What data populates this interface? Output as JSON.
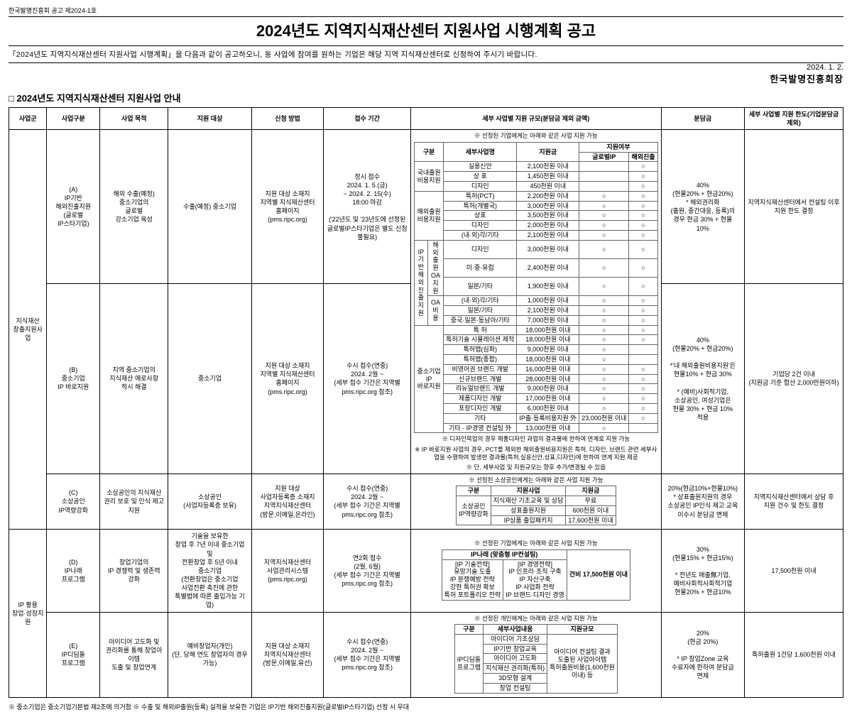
{
  "header": {
    "notice_no": "한국발명진흥회 공고 제2024-1호",
    "title": "2024년도 지역지식재산센터 지원사업 시행계획 공고",
    "intro": "「2024년도 지역지식재산센터 지원사업 시행계획」을 다음과 같이 공고하오니, 동 사업에 참여를 원하는 기업은 해당 지역 지식재산센터로 신청하여 주시기 바랍니다.",
    "date": "2024. 1. 2.",
    "signer": "한국발명진흥회장",
    "section_heading": "□ 2024년도 지역지식재산센터 지원사업 안내"
  },
  "cols": {
    "c1": "사업군",
    "c2": "사업구분",
    "c3": "사업 목적",
    "c4": "지원 대상",
    "c5": "신청 방법",
    "c6": "접수 기간",
    "c7": "세부 사업별 지원 규모(분담금 제외 금액)",
    "c8": "분담금",
    "c9": "세부 사업별 지원 한도(기업분담금 제외)"
  },
  "g1": {
    "label": "지식재산\n창출지원사업"
  },
  "g2": {
    "label": "IP 활용\n창업·성장지원"
  },
  "a": {
    "gubun": "(A)\nIP기반\n해외진출지원\n(글로벌\nIP스타기업)",
    "purpose": "해외 수출(예정)\n중소기업의\n글로벌\n강소기업 육성",
    "target": "수출(예정) 중소기업",
    "method": "지원 대상 소재지\n지역별 지식재산센터\n홈페이지\n(pms.ripc.org)",
    "period": "정시 접수\n2024. 1. 5.(금)\n~ 2024. 2. 15(수)\n18:00 마감\n\n('22년도 및 '23년도에 선정된\n글로벌IP스타기업은 별도 신청\n불필요)",
    "share": "40%\n(현물20% + 현금20%)\n* 해외권리화\n(출원, 중간대응, 등록)의\n경우 현금 30% + 현물\n10%",
    "limit": "지역지식재산센터에서 컨설팅 이후\n지원 한도 결정"
  },
  "b": {
    "gubun": "(B)\n중소기업\nIP 바로지원",
    "purpose": "지역 중소기업의\n지식재산 애로사항\n적시 해결",
    "target": "중소기업",
    "method": "지원 대상 소재지\n지역별 지식재산센터\n홈페이지\n(pms.ripc.org)",
    "period": "수시 접수(연중)\n2024. 2월 ~\n(세부 접수 기간은 지역별\npms.ripc.org 참조)",
    "share": "40%\n(현물20% + 현금20%)\n\n*'내 해외출원비용지원'은\n현물10% + 현금 30%\n\n* (예비)사회적기업,\n소상공인, 여성기업은\n현물 30% + 현금 10%\n적용",
    "limit": "기업당 2건 이내\n(지원금 기준 합산 2,000만원이하)"
  },
  "ab_nest": {
    "title": "※ 선정된 기업에게는 아래와 같은 사업 지원 가능",
    "head": {
      "h1": "구분",
      "h2": "세부사업명",
      "h3": "지원금",
      "h4": "지원여부",
      "h4a": "글로벌IP",
      "h4b": "해외진출"
    },
    "g_domestic": "국내출원\n비용지원",
    "g_overseas": "해외출원\n비용지원",
    "g_ip": "IP기반\n해외진출\n지원",
    "g_sme": "중소기업\nIP\n바로지원",
    "g_oa": "해외출원\nOA지원",
    "sub_oa": "OA\n비용",
    "sub_etc": "등록\n비용",
    "rows": [
      {
        "a": "실용신안",
        "b": "2,100천원 이내",
        "c": "",
        "d": "○"
      },
      {
        "a": "상 표",
        "b": "1,450천원 이내",
        "c": "",
        "d": "○"
      },
      {
        "a": "디자인",
        "b": "450천원 이내",
        "c": "",
        "d": "○"
      },
      {
        "a": "특허(PCT)",
        "b": "2,200천원 이내",
        "c": "○",
        "d": "○"
      },
      {
        "a": "특허(개별국)",
        "b": "3,000천원 이내",
        "c": "○",
        "d": "○"
      },
      {
        "a": "상표",
        "b": "3,500천원 이내",
        "c": "○",
        "d": "○"
      },
      {
        "a": "디자인",
        "b": "2,000천원 이내",
        "c": "○",
        "d": "○"
      },
      {
        "a": "(내·외)각/기타",
        "b": "2,100천원 이내",
        "c": "○",
        "d": "○"
      },
      {
        "a": "디자인",
        "b": "3,000천원 이내",
        "c": "○",
        "d": "○"
      },
      {
        "a": "미·중·유럽",
        "b": "2,400천원 이내",
        "c": "○",
        "d": "○"
      },
      {
        "a": "일본/기타",
        "b": "1,900천원 이내",
        "c": "○",
        "d": "○"
      },
      {
        "a": "(내·외)각/기타",
        "b": "1,000천원 이내",
        "c": "○",
        "d": "○"
      },
      {
        "a": "일본/기타",
        "b": "2,100천원 이내",
        "c": "○",
        "d": "○"
      },
      {
        "a": "중국·일본·동남아/기타",
        "b": "7,000천원 이내",
        "c": "○",
        "d": "○"
      },
      {
        "a": "특 허",
        "b": "18,000천원 이내",
        "c": "○",
        "d": "○"
      },
      {
        "a": "특허기술 시뮬레이션 제작",
        "b": "18,000천원 이내",
        "c": "○",
        "d": "○"
      },
      {
        "a": "특허맵(심화)",
        "b": "9,000천원 이내",
        "c": "○",
        "d": ""
      },
      {
        "a": "특허맵(종합)",
        "b": "18,000천원 이내",
        "c": "○",
        "d": ""
      },
      {
        "a": "비영어권 브랜드 개발",
        "b": "16,000천원 이내",
        "c": "○",
        "d": "○"
      },
      {
        "a": "신규브랜드 개발",
        "b": "28,000천원 이내",
        "c": "○",
        "d": "○"
      },
      {
        "a": "리뉴얼브랜드 개발",
        "b": "9,000천원 이내",
        "c": "○",
        "d": "○"
      },
      {
        "a": "제품디자인 개발",
        "b": "17,000천원 이내",
        "c": "○",
        "d": "○"
      },
      {
        "a": "포장디자인 개발",
        "b": "6,000천원 이내",
        "c": "○",
        "d": "○"
      },
      {
        "a": "기타",
        "b": "IP출·등록비용지원 外",
        "c": "23,000천원 이내",
        "d": "○"
      },
      {
        "a": "기타 - IP경영 컨설팅 外",
        "b": "13,000천원 이내",
        "c": "○",
        "d": ""
      }
    ],
    "notes": [
      "※ 디자인목업의 경우 제품디자인 과업의 결과물에 한하여 연계로 지원 가능",
      "※ IP 바로지원 사업의 경우, PCT를 제외한 해외출원비용지원은 특허, 디자인, 브랜드 관련 세부사업을 수행하여 발생한 결과물(특허,실용신안,상표,디자인)에 한하여 연계 지원 제공",
      "※ 단, 세부사업 및 지원규모는 향후 추가/변경될 수 있음"
    ]
  },
  "c": {
    "gubun": "(C)\n소상공인\nIP역량강화",
    "purpose": "소상공인의 지식재산\n권리 보호 및 인식 제고\n지원",
    "target": "소상공인\n(사업자등록증 보유)",
    "method": "지원 대상\n사업자등록증 소재지\n지역지식재산센터\n(방문,이메일,온라인)",
    "period": "수시 접수(연중)\n2024. 2월 ~\n(세부 접수 기간은 지역별\npms.ripc.org 참조)",
    "share": "20%(현금10%+현물10%)\n* 상표출원지원의 경우\n소상공인 IP인식 제고 교육\n이수시 분담금 면제",
    "limit": "지역지식재산센터에서 상담 후\n지원 건수 및 한도 결정",
    "nest_title": "※ 선정된 소상공인에게는 아래와 같은 사업 지원 가능",
    "t": {
      "h1": "구분",
      "h2": "지원사업",
      "h3": "지원금",
      "g": "소상공인\nIP역량강화",
      "r1a": "지식재산 기초교육 및 상담",
      "r1b": "무료",
      "r2a": "상표출원지원",
      "r2b": "600천원 이내",
      "r3a": "IP상품 출입패키지",
      "r3b": "17,600천원 이내"
    }
  },
  "d": {
    "gubun": "(D)\nIP나래\n프로그램",
    "purpose": "창업기업의\nIP 경쟁력 및 생존력\n강화",
    "target": "기술을 보유한\n창업 후 7년 이내 중소기업 및\n전환창업 후 5년 이내\n중소기업\n(전환창업은 중소기업\n사업전환 촉진에 관한\n특별법에 따른 출입가능 기업)",
    "method": "지역지식재산센터\n사업관리시스템\n(pms.ripc.org)",
    "period": "연2회 접수\n(2월, 6월)\n(세부 접수 기간은 지역별\npms.ripc.org 참조)",
    "share": "30%\n(현물15% + 현금15%)\n\n* 전년도 매출無기업,\n예비사회적사회적기업\n현물20% + 현금10%",
    "limit": "17,500천원 이내",
    "nest_title": "※ 선정된 기업에게는 아래와 같은 사업 지원 가능",
    "t": {
      "h": "IP나래 (맞춤형 IP컨설팅)",
      "l": "[IP 기술전략]\n유망기술 도출\nIP 분쟁예방 전략\n강한 특허권 확보\n특허 포트폴리오 전략",
      "r": "[IP 경영전략]\nIP 인프라·조직 구축\nIP 자산구축\nIP 사업화 전략\nIP 브랜드·디자인 경영",
      "amt": "건비 17,500천원 이내"
    }
  },
  "e": {
    "gubun": "(E)\nIP디딤돌\n프로그램",
    "purpose": "아이디어 고도화 및\n권리화를 통해 창업아이템\n도출 및 창업연계",
    "target": "예비창업자(개인)\n(단, 당해 연도 창업자의 경우\n가능)",
    "method": "지원 대상 소재지\n지역지식재산센터\n(방문,이메일,유선)",
    "period": "수시 접수(연중)\n2024. 2월 ~\n(세부 접수 기간은 지역별\npms.ripc.org 참조)",
    "share": "20%\n(현금 20%)\n\n* IP 창업Zone 교육\n수료자에 한하여 분담금\n면제",
    "limit": "특허출원 1건당 1,600천원 이내",
    "nest_title": "※ 선정된 개인에게는 아래와 같은 사업 지원 가능",
    "t": {
      "h1": "구분",
      "h2": "세부사업내용",
      "h3": "지원규모",
      "g": "IP디딤돌\n프로그램",
      "rows": [
        "아이디어 기초상담",
        "IP기반 창업교육",
        "아이디어 고도화",
        "지식재산 권리화(특허)",
        "3D모형 설계",
        "창업 컨설팅"
      ],
      "amt": "아이디어 컨설팅 결과\n도출된 사업아이템\n특허출원비용(1,600천원\n이내) 등"
    }
  },
  "footer": "※ 중소기업은 중소기업기본법 제2조에 의거함   ※ 수출 및 해외IP출원(등록) 실적을 보유한 기업은 IP기반 해외진출지원(글로벌IP스타기업) 선정 시 우대"
}
